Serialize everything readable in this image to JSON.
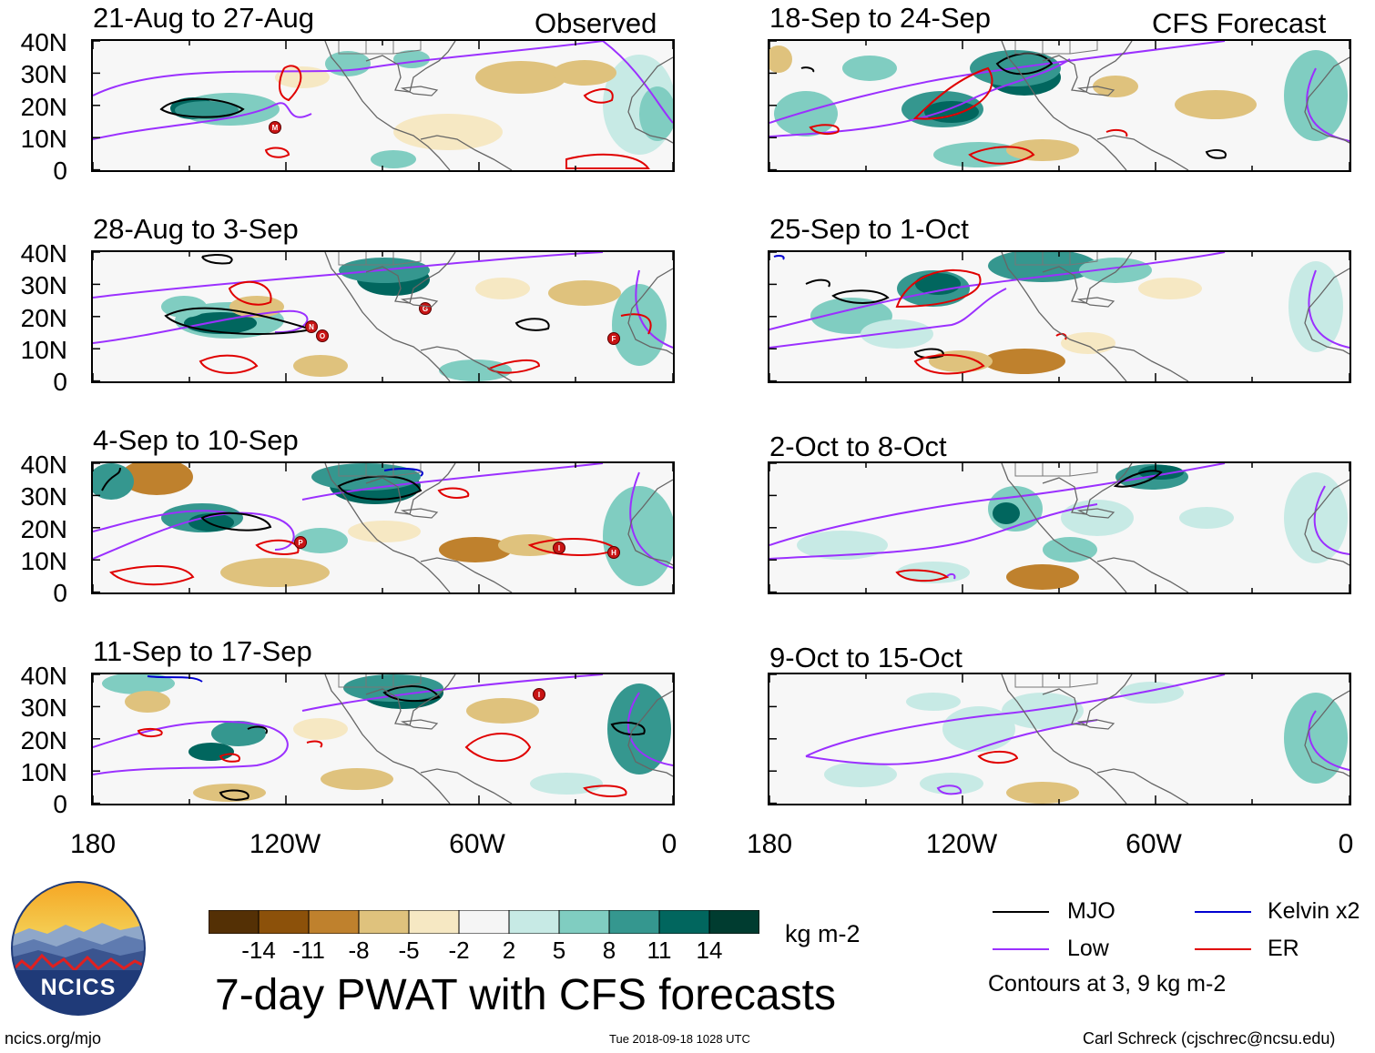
{
  "column_headers": {
    "observed": "Observed",
    "forecast": "CFS Forecast"
  },
  "panels": [
    {
      "title": "21-Aug to 27-Aug",
      "column": "observed"
    },
    {
      "title": "28-Aug to 3-Sep",
      "column": "observed"
    },
    {
      "title": "4-Sep to 10-Sep",
      "column": "observed"
    },
    {
      "title": "11-Sep to 17-Sep",
      "column": "observed"
    },
    {
      "title": "18-Sep to 24-Sep",
      "column": "forecast"
    },
    {
      "title": "25-Sep to 1-Oct",
      "column": "forecast"
    },
    {
      "title": "2-Oct to 8-Oct",
      "column": "forecast"
    },
    {
      "title": "9-Oct to 15-Oct",
      "column": "forecast"
    }
  ],
  "y_axis_labels": [
    "40N",
    "30N",
    "20N",
    "10N",
    "0"
  ],
  "x_axis_labels": [
    "180",
    "120W",
    "60W",
    "0"
  ],
  "storm_markers": {
    "p0": [
      "M"
    ],
    "p1": [
      "N",
      "O",
      "G",
      "F"
    ],
    "p2": [
      "P",
      "I",
      "H"
    ],
    "p3": [
      "I"
    ]
  },
  "colorbar": {
    "tick_labels": [
      "-14",
      "-11",
      "-8",
      "-5",
      "-2",
      "2",
      "5",
      "8",
      "11",
      "14"
    ],
    "colors": [
      "#543005",
      "#8c510a",
      "#bf812d",
      "#dfc27d",
      "#f6e8c3",
      "#f5f5f5",
      "#c7eae5",
      "#80cdc1",
      "#35978f",
      "#01665e",
      "#003c30"
    ],
    "units": "kg m-2"
  },
  "legend": {
    "items": [
      {
        "label": "MJO",
        "color": "#000000"
      },
      {
        "label": "Kelvin x2",
        "color": "#0000d0"
      },
      {
        "label": "Low",
        "color": "#9b30ff"
      },
      {
        "label": "ER",
        "color": "#e00000"
      }
    ],
    "note": "Contours at 3, 9 kg m-2"
  },
  "title": "7-day PWAT with CFS forecasts",
  "logo_text": "NCICS",
  "footer": {
    "url": "ncics.org/mjo",
    "timestamp": "Tue 2018-09-18 1028 UTC",
    "credit": "Carl Schreck (cjschrec@ncsu.edu)"
  }
}
